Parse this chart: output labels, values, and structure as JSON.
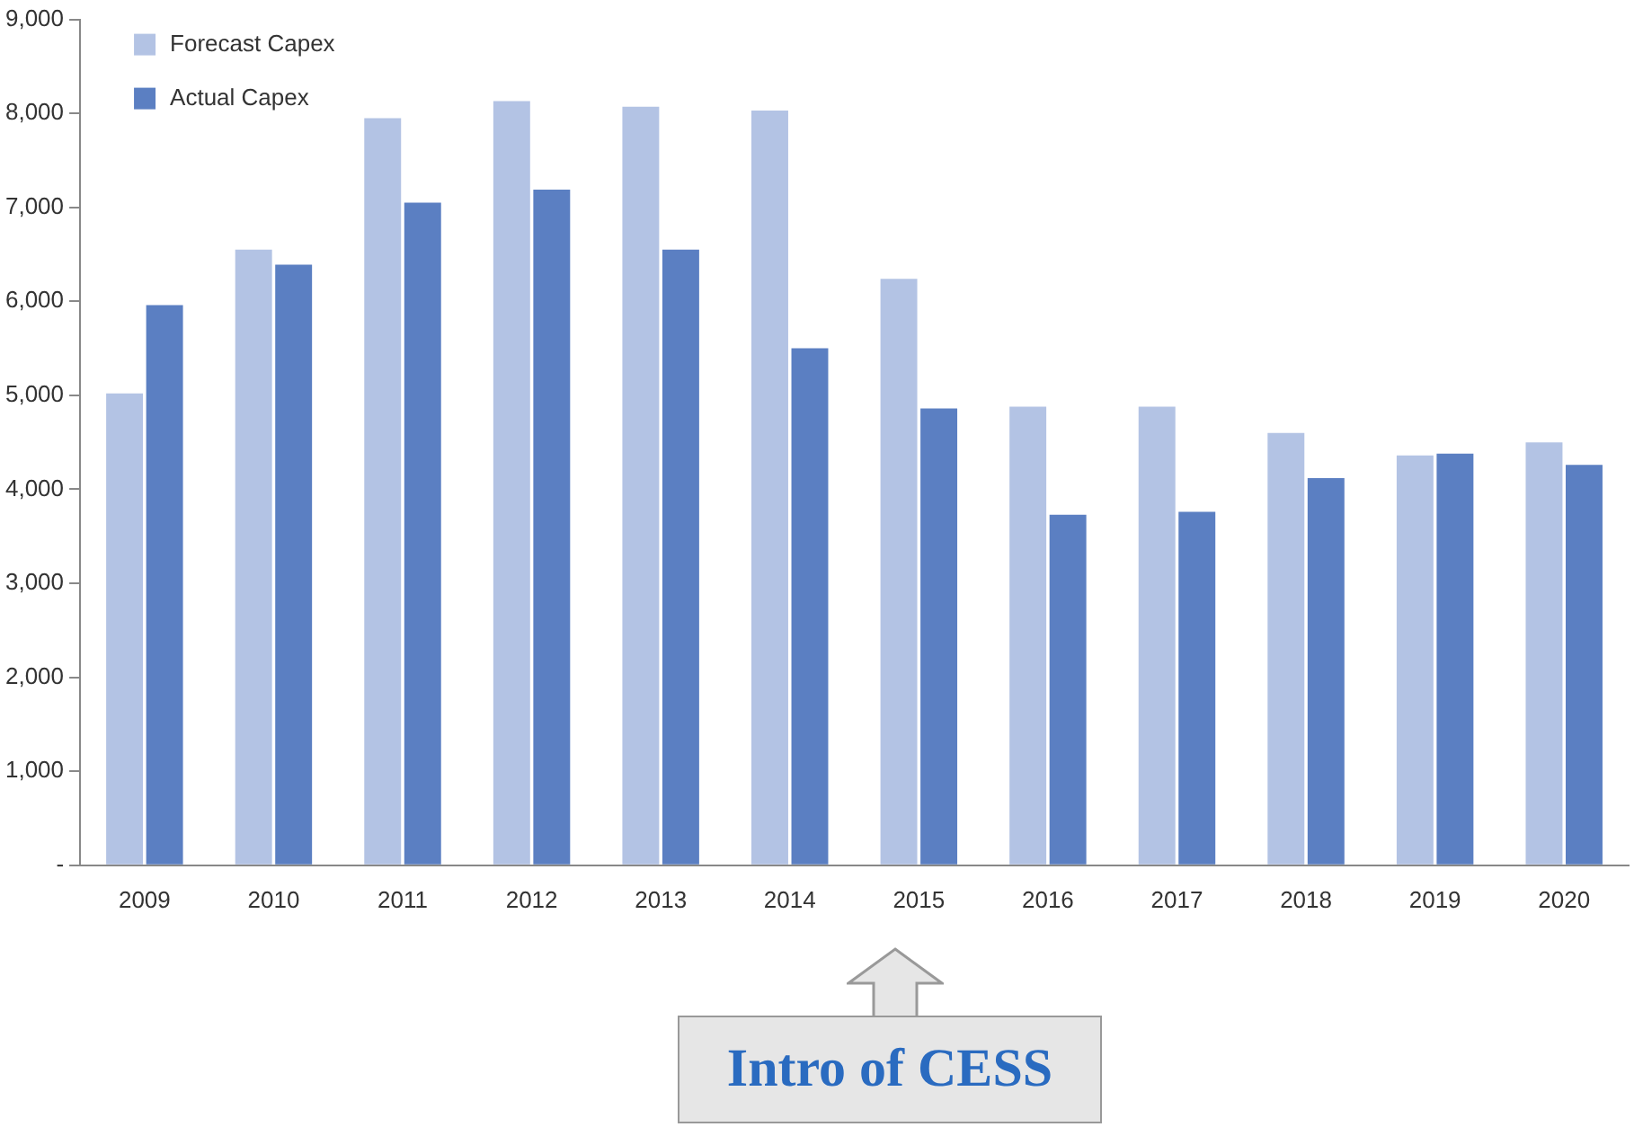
{
  "chart_data": {
    "type": "bar",
    "categories": [
      "2009",
      "2010",
      "2011",
      "2012",
      "2013",
      "2014",
      "2015",
      "2016",
      "2017",
      "2018",
      "2019",
      "2020"
    ],
    "series": [
      {
        "name": "Forecast Capex",
        "color": "#b3c3e4",
        "values": [
          5020,
          6550,
          7950,
          8130,
          8070,
          8030,
          6240,
          4880,
          4880,
          4600,
          4360,
          4500
        ]
      },
      {
        "name": "Actual Capex",
        "color": "#5b7fc2",
        "values": [
          5960,
          6390,
          7050,
          7190,
          6550,
          5500,
          4860,
          3730,
          3760,
          4120,
          4380,
          4260
        ]
      }
    ],
    "ylim": [
      0,
      9000
    ],
    "yticks": [
      {
        "value": 0,
        "label": "-"
      },
      {
        "value": 1000,
        "label": "1,000"
      },
      {
        "value": 2000,
        "label": "2,000"
      },
      {
        "value": 3000,
        "label": "3,000"
      },
      {
        "value": 4000,
        "label": "4,000"
      },
      {
        "value": 5000,
        "label": "5,000"
      },
      {
        "value": 6000,
        "label": "6,000"
      },
      {
        "value": 7000,
        "label": "7,000"
      },
      {
        "value": 8000,
        "label": "8,000"
      },
      {
        "value": 9000,
        "label": "9,000"
      }
    ],
    "grid": false,
    "legend": "top left",
    "annotations": [
      "Intro of CESS"
    ]
  }
}
